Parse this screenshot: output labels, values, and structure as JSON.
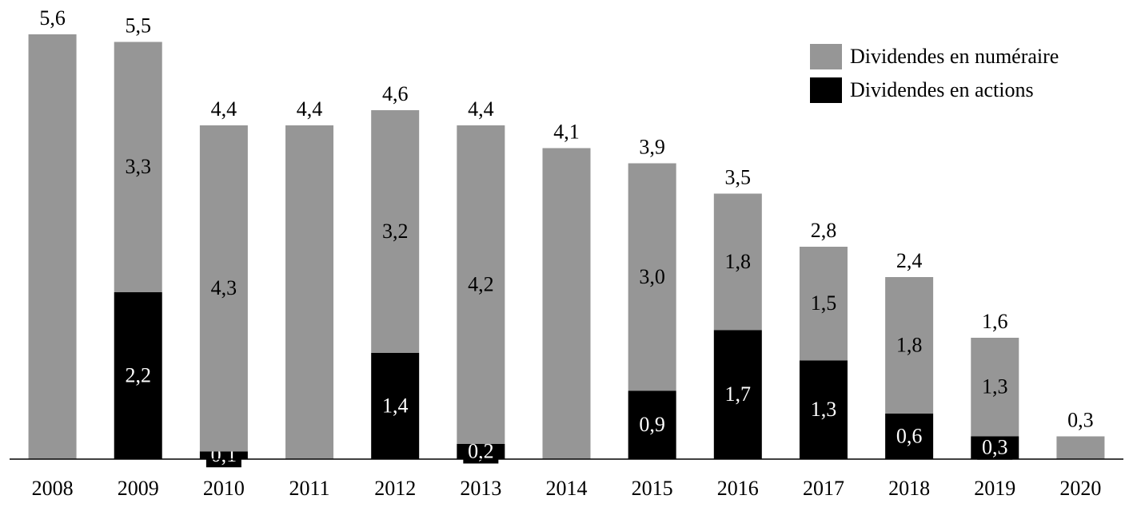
{
  "chart_data": {
    "type": "stacked-bar",
    "categories": [
      "2008",
      "2009",
      "2010",
      "2011",
      "2012",
      "2013",
      "2014",
      "2015",
      "2016",
      "2017",
      "2018",
      "2019",
      "2020"
    ],
    "series": [
      {
        "name": "Dividendes en actions",
        "color": "#000000",
        "values": [
          null,
          2.2,
          0.1,
          null,
          1.4,
          0.2,
          null,
          0.9,
          1.7,
          1.3,
          0.6,
          0.3,
          null
        ],
        "value_labels": [
          null,
          "2,2",
          "0,1",
          null,
          "1,4",
          "0,2",
          null,
          "0,9",
          "1,7",
          "1,3",
          "0,6",
          "0,3",
          null
        ]
      },
      {
        "name": "Dividendes en numéraire",
        "color": "#969696",
        "values": [
          5.6,
          3.3,
          4.3,
          4.4,
          3.2,
          4.2,
          4.1,
          3.0,
          1.8,
          1.5,
          1.8,
          1.3,
          0.3
        ],
        "value_labels": [
          null,
          "3,3",
          "4,3",
          null,
          "3,2",
          "4,2",
          null,
          "3,0",
          "1,8",
          "1,5",
          "1,8",
          "1,3",
          null
        ]
      }
    ],
    "totals": {
      "values": [
        5.6,
        5.5,
        4.4,
        4.4,
        4.6,
        4.4,
        4.1,
        3.9,
        3.5,
        2.8,
        2.4,
        1.6,
        0.3
      ],
      "value_labels": [
        "5,6",
        "5,5",
        "4,4",
        "4,4",
        "4,6",
        "4,4",
        "4,1",
        "3,9",
        "3,5",
        "2,8",
        "2,4",
        "1,6",
        "0,3"
      ]
    },
    "ylim": [
      0,
      6
    ],
    "legend": "top-right"
  }
}
